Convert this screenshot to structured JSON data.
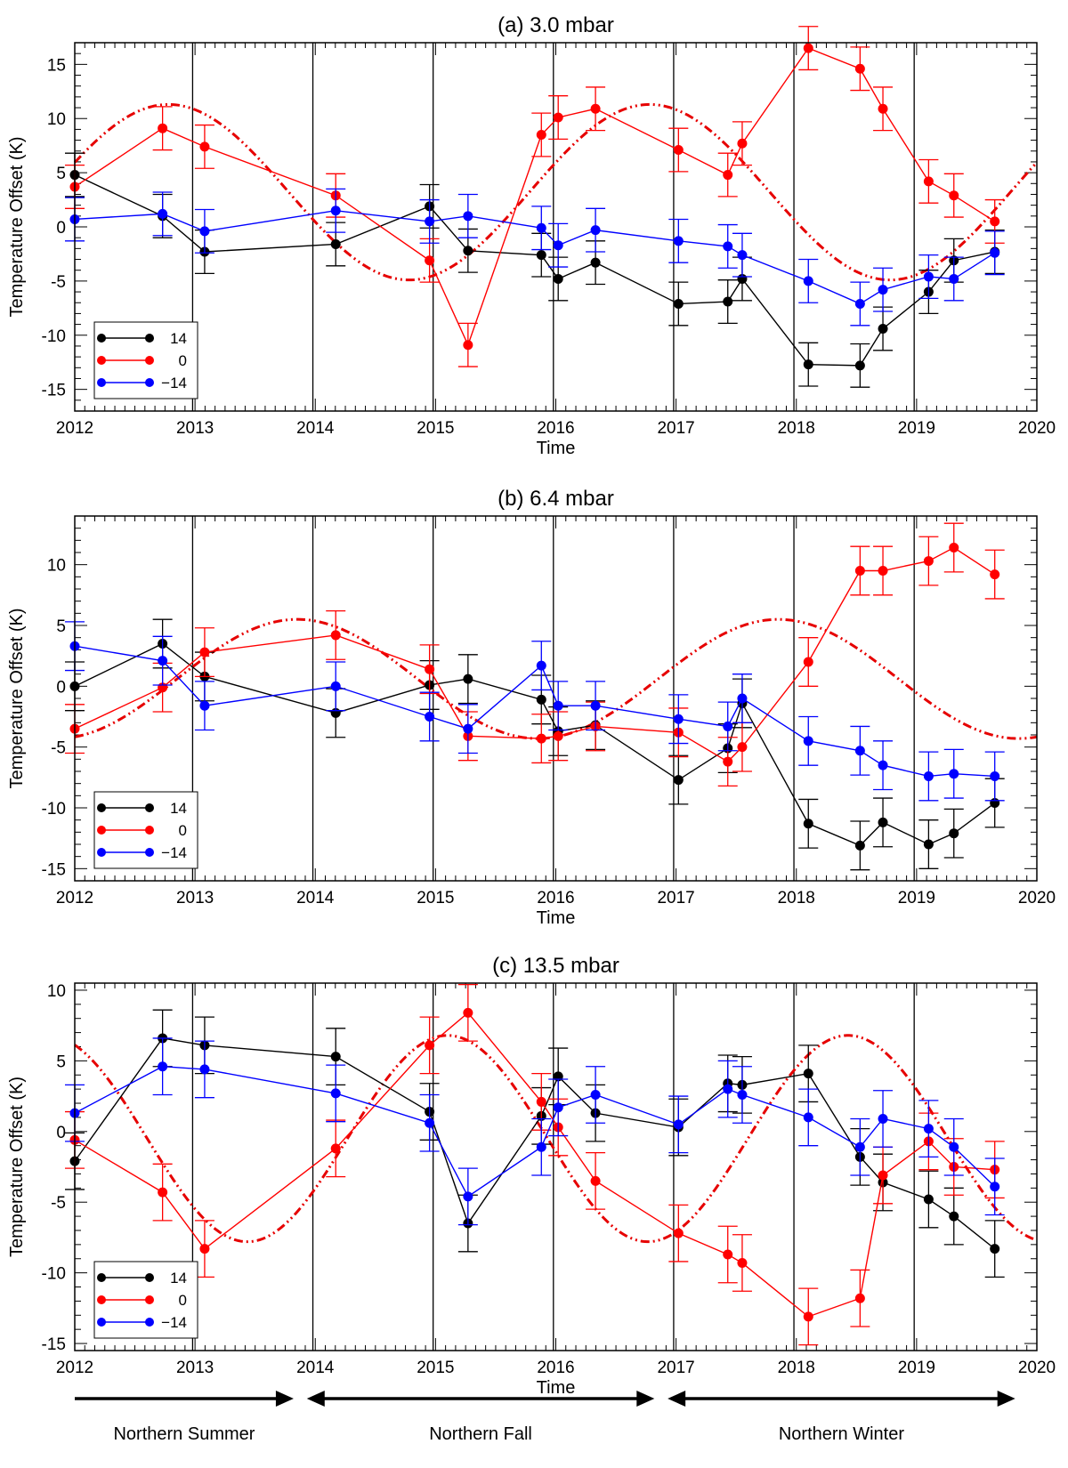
{
  "colors": {
    "lat_14": "#000000",
    "lat_0": "#ff0000",
    "lat_m14": "#0000ff",
    "model": "#e60000"
  },
  "xlabel": "Time",
  "ylabel": "Temperature Offset (K)",
  "xlim": [
    2012,
    2020
  ],
  "xticks": [
    2012,
    2013,
    2014,
    2015,
    2016,
    2017,
    2018,
    2019,
    2020
  ],
  "vertical_lines": [
    2012.98,
    2013.98,
    2014.98,
    2015.98,
    2016.98,
    2017.98,
    2018.98
  ],
  "legend": {
    "position": "bottom-left",
    "entries": [
      "14",
      "0",
      "−14"
    ]
  },
  "seasons": [
    {
      "label": "Northern Summer",
      "x_from": 2012,
      "x_to": 2013.82,
      "arrows": "right"
    },
    {
      "label": "Northern Fall",
      "x_from": 2013.93,
      "x_to": 2016.82,
      "arrows": "both"
    },
    {
      "label": "Northern Winter",
      "x_from": 2016.93,
      "x_to": 2019.82,
      "arrows": "both"
    }
  ],
  "chart_data": [
    {
      "type": "line",
      "title": "(a) 3.0 mbar",
      "xlabel": "Time",
      "ylabel": "Temperature Offset (K)",
      "xlim": [
        2012,
        2020
      ],
      "ylim": [
        -17,
        17
      ],
      "yticks": [
        -15,
        -10,
        -5,
        0,
        5,
        10,
        15
      ],
      "error": 2.0,
      "model": {
        "amplitude": 8.1,
        "offset": 3.2,
        "peak": 2012.78,
        "period": 4.0
      },
      "series": [
        {
          "name": "14",
          "color": "#000000",
          "x": [
            2012.0,
            2012.73,
            2013.08,
            2014.17,
            2014.95,
            2015.27,
            2015.88,
            2016.02,
            2016.33,
            2017.02,
            2017.43,
            2017.55,
            2018.1,
            2018.53,
            2018.72,
            2019.1,
            2019.31,
            2019.65
          ],
          "y": [
            4.8,
            1.0,
            -2.3,
            -1.6,
            1.9,
            -2.2,
            -2.6,
            -4.8,
            -3.3,
            -7.1,
            -6.9,
            -4.8,
            -12.7,
            -12.8,
            -9.4,
            -6.0,
            -3.1,
            -2.3
          ]
        },
        {
          "name": "0",
          "color": "#ff0000",
          "x": [
            2012.0,
            2012.73,
            2013.08,
            2014.17,
            2014.95,
            2015.27,
            2015.88,
            2016.02,
            2016.33,
            2017.02,
            2017.43,
            2017.55,
            2018.1,
            2018.53,
            2018.72,
            2019.1,
            2019.31,
            2019.65
          ],
          "y": [
            3.7,
            9.1,
            7.4,
            2.9,
            -3.1,
            -10.9,
            8.5,
            10.1,
            10.9,
            7.1,
            4.8,
            7.7,
            16.5,
            14.6,
            10.9,
            4.2,
            2.9,
            0.5
          ]
        },
        {
          "name": "−14",
          "color": "#0000ff",
          "x": [
            2012.0,
            2012.73,
            2013.08,
            2014.17,
            2014.95,
            2015.27,
            2015.88,
            2016.02,
            2016.33,
            2017.02,
            2017.43,
            2017.55,
            2018.1,
            2018.53,
            2018.72,
            2019.1,
            2019.31,
            2019.65
          ],
          "y": [
            0.7,
            1.2,
            -0.4,
            1.5,
            0.5,
            1.0,
            -0.1,
            -1.7,
            -0.3,
            -1.3,
            -1.8,
            -2.6,
            -5.0,
            -7.1,
            -5.8,
            -4.6,
            -4.8,
            -2.4
          ]
        }
      ]
    },
    {
      "type": "line",
      "title": "(b) 6.4 mbar",
      "xlabel": "Time",
      "ylabel": "Temperature Offset (K)",
      "xlim": [
        2012,
        2020
      ],
      "ylim": [
        -16,
        14
      ],
      "yticks": [
        -15,
        -10,
        -5,
        0,
        5,
        10
      ],
      "error": 2.0,
      "model": {
        "amplitude": 4.9,
        "offset": 0.6,
        "peak": 2013.85,
        "period": 4.0
      },
      "series": [
        {
          "name": "14",
          "color": "#000000",
          "x": [
            2012.0,
            2012.73,
            2013.08,
            2014.17,
            2014.95,
            2015.27,
            2015.88,
            2016.02,
            2016.33,
            2017.02,
            2017.43,
            2017.55,
            2018.1,
            2018.53,
            2018.72,
            2019.1,
            2019.31,
            2019.65
          ],
          "y": [
            0.0,
            3.5,
            0.8,
            -2.2,
            0.1,
            0.6,
            -1.1,
            -3.7,
            -3.2,
            -7.7,
            -5.1,
            -1.4,
            -11.3,
            -13.1,
            -11.2,
            -13.0,
            -12.1,
            -9.6
          ]
        },
        {
          "name": "0",
          "color": "#ff0000",
          "x": [
            2012.0,
            2012.73,
            2013.08,
            2014.17,
            2014.95,
            2015.27,
            2015.88,
            2016.02,
            2016.33,
            2017.02,
            2017.43,
            2017.55,
            2018.1,
            2018.53,
            2018.72,
            2019.1,
            2019.31,
            2019.65
          ],
          "y": [
            -3.5,
            -0.1,
            2.8,
            4.2,
            1.4,
            -4.1,
            -4.3,
            -4.1,
            -3.3,
            -3.8,
            -6.2,
            -5.0,
            2.0,
            9.5,
            9.5,
            10.3,
            11.4,
            9.2
          ]
        },
        {
          "name": "−14",
          "color": "#0000ff",
          "x": [
            2012.0,
            2012.73,
            2013.08,
            2014.17,
            2014.95,
            2015.27,
            2015.88,
            2016.02,
            2016.33,
            2017.02,
            2017.43,
            2017.55,
            2018.1,
            2018.53,
            2018.72,
            2019.1,
            2019.31,
            2019.65
          ],
          "y": [
            3.3,
            2.1,
            -1.6,
            0.0,
            -2.5,
            -3.5,
            1.7,
            -1.6,
            -1.6,
            -2.7,
            -3.3,
            -1.0,
            -4.5,
            -5.3,
            -6.5,
            -7.4,
            -7.2,
            -7.4
          ]
        }
      ]
    },
    {
      "type": "line",
      "title": "(c) 13.5 mbar",
      "xlabel": "Time",
      "ylabel": "Temperature Offset (K)",
      "xlim": [
        2012,
        2020
      ],
      "ylim": [
        -15.5,
        10.5
      ],
      "yticks": [
        -15,
        -10,
        -5,
        0,
        5,
        10
      ],
      "error": 2.0,
      "model": {
        "amplitude": 7.3,
        "offset": -0.5,
        "peak": 2015.1,
        "period": 3.33
      },
      "series": [
        {
          "name": "14",
          "color": "#000000",
          "x": [
            2012.0,
            2012.73,
            2013.08,
            2014.17,
            2014.95,
            2015.27,
            2015.88,
            2016.02,
            2016.33,
            2017.02,
            2017.43,
            2017.55,
            2018.1,
            2018.53,
            2018.72,
            2019.1,
            2019.31,
            2019.65
          ],
          "y": [
            -2.1,
            6.6,
            6.1,
            5.3,
            1.4,
            -6.5,
            1.1,
            3.9,
            1.3,
            0.3,
            3.4,
            3.3,
            4.1,
            -1.8,
            -3.6,
            -4.8,
            -6.0,
            -8.3
          ]
        },
        {
          "name": "0",
          "color": "#ff0000",
          "x": [
            2012.0,
            2012.73,
            2013.08,
            2014.17,
            2014.95,
            2015.27,
            2015.88,
            2016.02,
            2016.33,
            2017.02,
            2017.43,
            2017.55,
            2018.1,
            2018.53,
            2018.72,
            2019.1,
            2019.31,
            2019.65
          ],
          "y": [
            -0.6,
            -4.3,
            -8.3,
            -1.2,
            6.1,
            8.4,
            2.1,
            0.3,
            -3.5,
            -7.2,
            -8.7,
            -9.3,
            -13.1,
            -11.8,
            -3.1,
            -0.7,
            -2.5,
            -2.7
          ]
        },
        {
          "name": "−14",
          "color": "#0000ff",
          "x": [
            2012.0,
            2012.73,
            2013.08,
            2014.17,
            2014.95,
            2015.27,
            2015.88,
            2016.02,
            2016.33,
            2017.02,
            2017.43,
            2017.55,
            2018.1,
            2018.53,
            2018.72,
            2019.1,
            2019.31,
            2019.65
          ],
          "y": [
            1.3,
            4.6,
            4.4,
            2.7,
            0.6,
            -4.6,
            -1.1,
            1.7,
            2.6,
            0.5,
            3.0,
            2.6,
            1.0,
            -1.1,
            0.9,
            0.2,
            -1.1,
            -3.9
          ]
        }
      ]
    }
  ]
}
